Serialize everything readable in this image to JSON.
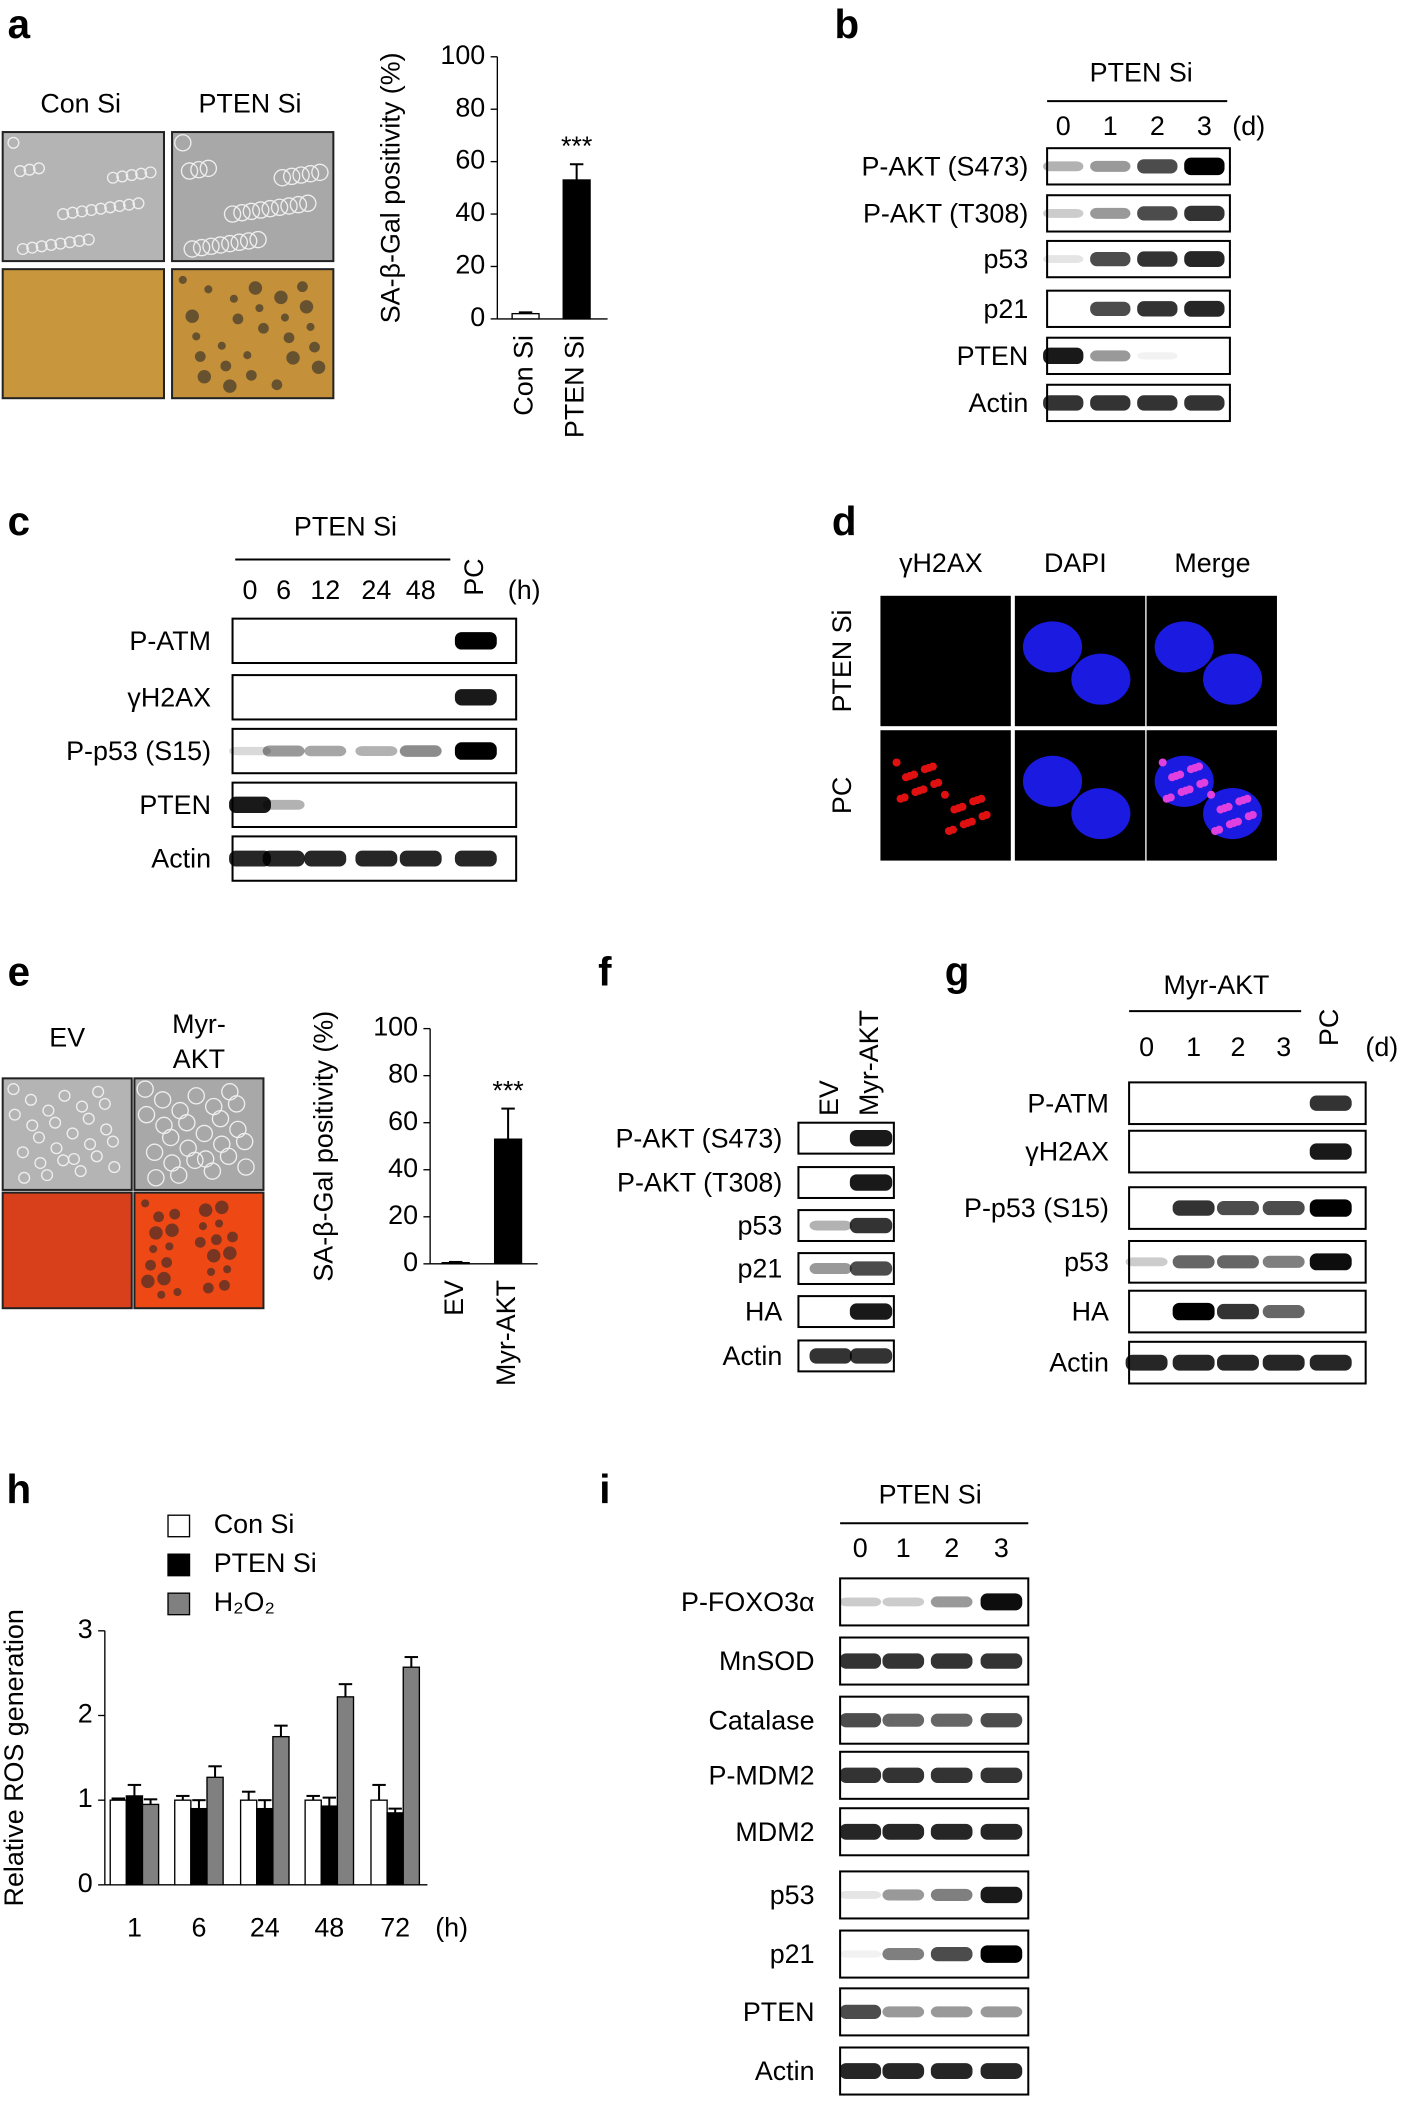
{
  "chart_data": [
    {
      "type": "bar",
      "y_label": "SA-β-Gal positivity (%)",
      "categories": [
        "Con Si",
        "PTEN Si"
      ],
      "values": [
        2,
        53
      ],
      "errors": [
        0.5,
        6
      ],
      "colors": [
        "#ffffff",
        "#000000"
      ],
      "ylim": [
        0,
        100
      ],
      "yticks": [
        0,
        20,
        40,
        60,
        80,
        100
      ],
      "annotation": "***"
    },
    {
      "type": "bar",
      "y_label": "SA-β-Gal positivity (%)",
      "categories": [
        "EV",
        "Myr-AKT"
      ],
      "values": [
        0.5,
        53
      ],
      "errors": [
        0.3,
        13
      ],
      "colors": [
        "#ffffff",
        "#000000"
      ],
      "ylim": [
        0,
        100
      ],
      "yticks": [
        0,
        20,
        40,
        60,
        80,
        100
      ],
      "annotation": "***"
    },
    {
      "type": "bar",
      "letter": "h",
      "y_label": "Relative ROS generation",
      "categories": [
        "1",
        "6",
        "24",
        "48",
        "72"
      ],
      "x_unit": "(h)",
      "ylim": [
        0,
        3
      ],
      "yticks": [
        0,
        1,
        2,
        3
      ],
      "series": [
        {
          "name": "Con Si",
          "color": "#ffffff",
          "values": [
            1,
            1,
            1,
            1,
            1
          ],
          "errors": [
            0.02,
            0.05,
            0.1,
            0.05,
            0.18
          ]
        },
        {
          "name": "PTEN Si",
          "color": "#000000",
          "values": [
            1.05,
            0.9,
            0.9,
            0.93,
            0.85
          ],
          "errors": [
            0.13,
            0.1,
            0.1,
            0.1,
            0.05
          ]
        },
        {
          "name": "H₂O₂",
          "color": "#808080",
          "values": [
            0.95,
            1.27,
            1.75,
            2.22,
            2.57
          ],
          "errors": [
            0.06,
            0.13,
            0.13,
            0.15,
            0.12
          ]
        }
      ]
    }
  ],
  "micrographs": [
    {
      "letter": "a",
      "columns": [
        [
          "Con Si"
        ],
        [
          "PTEN Si"
        ]
      ]
    },
    {
      "letter": "e",
      "columns": [
        [
          "EV"
        ],
        [
          "Myr-",
          "AKT"
        ]
      ]
    }
  ],
  "immunofluorescence": {
    "letter": "d",
    "columns": [
      "γH2AX",
      "DAPI",
      "Merge"
    ],
    "rows": [
      "PTEN Si",
      "PC"
    ]
  },
  "blots": [
    {
      "letter": "b",
      "group_label": "PTEN Si",
      "lanes": [
        "0",
        "1",
        "2",
        "3"
      ],
      "unit": "(d)",
      "rows": [
        "P-AKT (S473)",
        "P-AKT (T308)",
        "p53",
        "p21",
        "PTEN",
        "Actin"
      ]
    },
    {
      "letter": "c",
      "group_label": "PTEN Si",
      "lanes": [
        "0",
        "6",
        "12",
        "24",
        "48"
      ],
      "control_lane": "PC",
      "unit": "(h)",
      "rows": [
        "P-ATM",
        "γH2AX",
        "P-p53 (S15)",
        "PTEN",
        "Actin"
      ]
    },
    {
      "letter": "f",
      "lanes": [
        "EV",
        "Myr-AKT"
      ],
      "rows": [
        "P-AKT (S473)",
        "P-AKT (T308)",
        "p53",
        "p21",
        "HA",
        "Actin"
      ]
    },
    {
      "letter": "g",
      "group_label": "Myr-AKT",
      "lanes": [
        "0",
        "1",
        "2",
        "3"
      ],
      "control_lane": "PC",
      "unit": "(d)",
      "rows": [
        "P-ATM",
        "γH2AX",
        "P-p53 (S15)",
        "p53",
        "HA",
        "Actin"
      ]
    },
    {
      "letter": "i",
      "group_label": "PTEN Si",
      "lanes": [
        "0",
        "1",
        "2",
        "3"
      ],
      "rows": [
        "P-FOXO3α",
        "MnSOD",
        "Catalase",
        "P-MDM2",
        "MDM2",
        "p53",
        "p21",
        "PTEN",
        "Actin"
      ]
    }
  ]
}
